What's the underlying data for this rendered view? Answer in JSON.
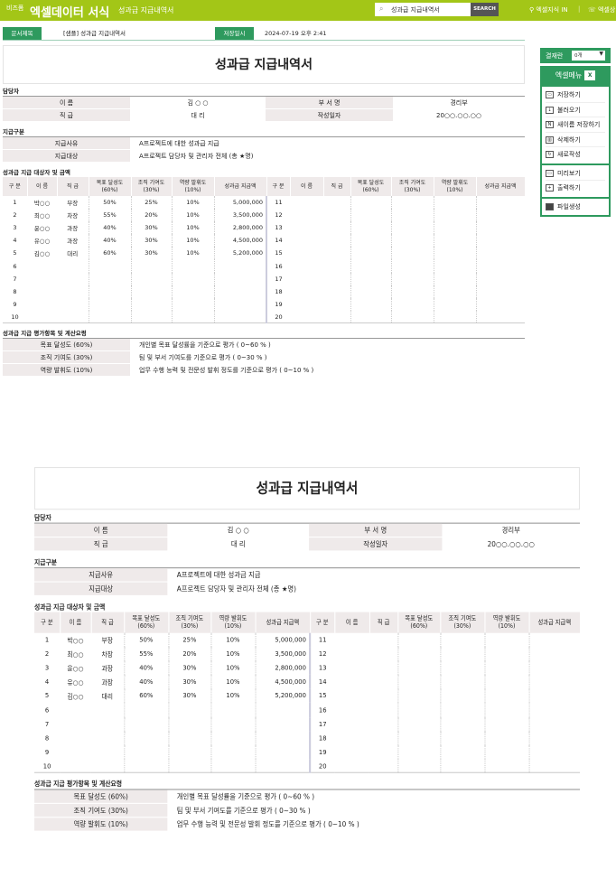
{
  "topbar": {
    "brand_small": "비즈폼",
    "brand": "엑셀데이터 서식",
    "subtitle": "성과급 지급내역서",
    "search_value": "성과급 지급내역서",
    "search_button": "SEARCH",
    "link1": "엑셀지식 IN",
    "link2": "엑셀상",
    "brand_color": "#a3c617"
  },
  "info": {
    "doc_title_label": "문서제목",
    "doc_title": "[샘플] 성과급 지급내역서",
    "saved_label": "저장일시",
    "saved": "2024-07-19  오후 2:41"
  },
  "form": {
    "title": "성과급 지급내역서",
    "manager": {
      "section": "담당자",
      "name_label": "이  름",
      "name": "김 ○ ○",
      "dept_label": "부 서 명",
      "dept": "경리부",
      "rank_label": "직  급",
      "rank": "대 리",
      "date_label": "작성일자",
      "date": "20○○.○○.○○"
    },
    "payment": {
      "section": "지급구분",
      "reason_label": "지급사유",
      "reason": "A프로젝트에 대한 성과급 지급",
      "target_label": "지급대상",
      "target": "A프로젝트 담당자 및 관리자 전체 (총 ★명)"
    },
    "recipients": {
      "section": "성과급 지급 대상자 및 금액",
      "headers": [
        "구 분",
        "이 름",
        "직 급",
        "목표 달성도\n(60%)",
        "조직 기여도\n(30%)",
        "역량 발휘도\n(10%)",
        "성과급 지급액"
      ],
      "rows": [
        [
          "1",
          "박○○",
          "부장",
          "50%",
          "25%",
          "10%",
          "5,000,000"
        ],
        [
          "2",
          "최○○",
          "차장",
          "55%",
          "20%",
          "10%",
          "3,500,000"
        ],
        [
          "3",
          "윤○○",
          "과장",
          "40%",
          "30%",
          "10%",
          "2,800,000"
        ],
        [
          "4",
          "유○○",
          "과장",
          "40%",
          "30%",
          "10%",
          "4,500,000"
        ],
        [
          "5",
          "김○○",
          "대리",
          "60%",
          "30%",
          "10%",
          "5,200,000"
        ],
        [
          "6",
          "",
          "",
          "",
          "",
          "",
          ""
        ],
        [
          "7",
          "",
          "",
          "",
          "",
          "",
          ""
        ],
        [
          "8",
          "",
          "",
          "",
          "",
          "",
          ""
        ],
        [
          "9",
          "",
          "",
          "",
          "",
          "",
          ""
        ],
        [
          "10",
          "",
          "",
          "",
          "",
          "",
          ""
        ]
      ],
      "rows_right": [
        [
          "11"
        ],
        [
          "12"
        ],
        [
          "13"
        ],
        [
          "14"
        ],
        [
          "15"
        ],
        [
          "16"
        ],
        [
          "17"
        ],
        [
          "18"
        ],
        [
          "19"
        ],
        [
          "20"
        ]
      ]
    },
    "criteria": {
      "section": "성과급 지급 평가항목 및 계산요령",
      "items": [
        {
          "label": "목표 달성도 (60%)",
          "desc": "개인별 목표 달성률을 기준으로 평가 ( 0~60 % )"
        },
        {
          "label": "조직 기여도 (30%)",
          "desc": "팀 및 부서 기여도를 기준으로 평가 ( 0~30 % )"
        },
        {
          "label": "역량 발휘도 (10%)",
          "desc": "업무 수행 능력 및 전문성 발휘 정도를 기준으로 평가 ( 0~10 % )"
        }
      ]
    }
  },
  "sidebar": {
    "approval_label": "결재란",
    "approval_value": "0개",
    "menu_title": "엑셀메뉴",
    "menu_badge": "X",
    "group1": [
      "저장하기",
      "불러오기",
      "새이름 저장하기",
      "삭제하기",
      "새로작성"
    ],
    "group2": [
      "미리보기",
      "출력하기"
    ],
    "group3": [
      "파일생성"
    ],
    "accent": "#2e9a5e"
  }
}
